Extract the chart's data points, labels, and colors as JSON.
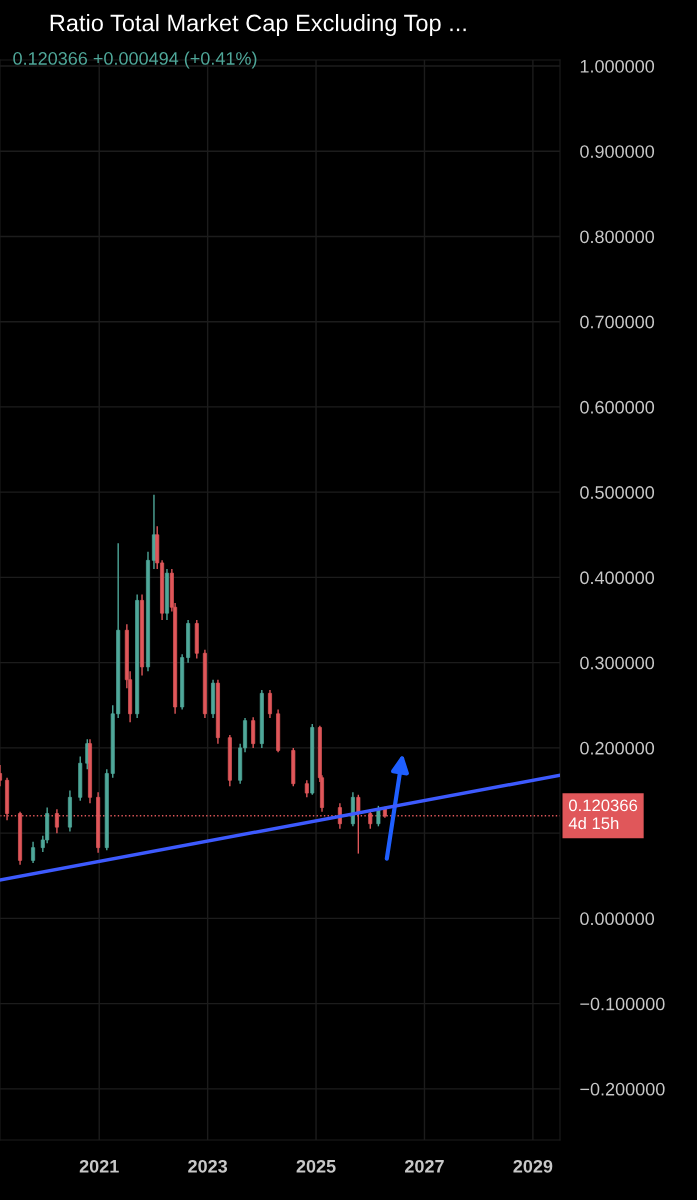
{
  "chart_data": {
    "type": "candlestick",
    "title": "Ratio Total Market Cap Excluding Top ...",
    "subtitle": "0.120366 +0.000494 (+0.41%)",
    "x": [
      2019.17,
      2019.3,
      2019.54,
      2019.78,
      2019.96,
      2020.04,
      2020.22,
      2020.46,
      2020.65,
      2020.78,
      2020.83,
      2020.98,
      2021.14,
      2021.25,
      2021.35,
      2021.51,
      2021.57,
      2021.7,
      2021.79,
      2021.9,
      2022.01,
      2022.07,
      2022.16,
      2022.25,
      2022.34,
      2022.4,
      2022.53,
      2022.64,
      2022.8,
      2022.95,
      2023.1,
      2023.19,
      2023.41,
      2023.6,
      2023.69,
      2023.84,
      2024.0,
      2024.15,
      2024.3,
      2024.58,
      2024.83,
      2024.93,
      2025.07,
      2025.11,
      2025.44,
      2025.68,
      2025.78,
      2026.0,
      2026.15,
      2026.27
    ],
    "ohlc": [
      [
        0.17,
        0.18,
        0.155,
        0.162
      ],
      [
        0.162,
        0.165,
        0.115,
        0.123
      ],
      [
        0.123,
        0.125,
        0.063,
        0.068
      ],
      [
        0.068,
        0.09,
        0.065,
        0.083
      ],
      [
        0.083,
        0.097,
        0.078,
        0.092
      ],
      [
        0.092,
        0.13,
        0.088,
        0.123
      ],
      [
        0.123,
        0.128,
        0.1,
        0.107
      ],
      [
        0.107,
        0.15,
        0.102,
        0.142
      ],
      [
        0.142,
        0.19,
        0.138,
        0.182
      ],
      [
        0.182,
        0.21,
        0.175,
        0.205
      ],
      [
        0.205,
        0.21,
        0.135,
        0.142
      ],
      [
        0.142,
        0.148,
        0.077,
        0.083
      ],
      [
        0.083,
        0.175,
        0.08,
        0.17
      ],
      [
        0.17,
        0.25,
        0.165,
        0.24
      ],
      [
        0.24,
        0.44,
        0.235,
        0.338
      ],
      [
        0.338,
        0.345,
        0.27,
        0.28
      ],
      [
        0.28,
        0.29,
        0.23,
        0.24
      ],
      [
        0.24,
        0.38,
        0.235,
        0.373
      ],
      [
        0.373,
        0.38,
        0.285,
        0.295
      ],
      [
        0.295,
        0.43,
        0.29,
        0.42
      ],
      [
        0.42,
        0.497,
        0.41,
        0.45
      ],
      [
        0.45,
        0.46,
        0.41,
        0.417
      ],
      [
        0.417,
        0.42,
        0.35,
        0.358
      ],
      [
        0.358,
        0.41,
        0.35,
        0.405
      ],
      [
        0.405,
        0.41,
        0.36,
        0.365
      ],
      [
        0.365,
        0.37,
        0.24,
        0.248
      ],
      [
        0.248,
        0.31,
        0.245,
        0.306
      ],
      [
        0.306,
        0.35,
        0.3,
        0.346
      ],
      [
        0.346,
        0.35,
        0.305,
        0.311
      ],
      [
        0.311,
        0.315,
        0.235,
        0.24
      ],
      [
        0.24,
        0.28,
        0.235,
        0.276
      ],
      [
        0.276,
        0.28,
        0.205,
        0.212
      ],
      [
        0.212,
        0.215,
        0.155,
        0.162
      ],
      [
        0.162,
        0.205,
        0.158,
        0.2
      ],
      [
        0.2,
        0.235,
        0.195,
        0.232
      ],
      [
        0.232,
        0.236,
        0.2,
        0.205
      ],
      [
        0.205,
        0.268,
        0.2,
        0.264
      ],
      [
        0.264,
        0.268,
        0.235,
        0.24
      ],
      [
        0.24,
        0.245,
        0.195,
        0.197
      ],
      [
        0.197,
        0.2,
        0.155,
        0.158
      ],
      [
        0.158,
        0.162,
        0.142,
        0.147
      ],
      [
        0.147,
        0.228,
        0.145,
        0.224
      ],
      [
        0.224,
        0.226,
        0.16,
        0.165
      ],
      [
        0.165,
        0.168,
        0.125,
        0.13
      ],
      [
        0.13,
        0.135,
        0.105,
        0.111
      ],
      [
        0.111,
        0.148,
        0.108,
        0.142
      ],
      [
        0.142,
        0.145,
        0.076,
        0.123
      ],
      [
        0.123,
        0.128,
        0.105,
        0.111
      ],
      [
        0.111,
        0.132,
        0.108,
        0.129
      ],
      [
        0.129,
        0.131,
        0.118,
        0.12
      ]
    ],
    "series": [
      {
        "type": "line",
        "color": "#3d5afe",
        "x": [
          2019.17,
          2029.5
        ],
        "values": [
          0.045,
          0.168
        ]
      }
    ],
    "xlim": [
      2019.17,
      2029.5
    ],
    "xticks": [
      2021,
      2023,
      2025,
      2027,
      2029
    ],
    "ylim": [
      -0.26,
      1.007
    ],
    "yticks": [
      {
        "value": -0.2,
        "label": "−0.200000"
      },
      {
        "value": -0.1,
        "label": "−0.100000"
      },
      {
        "value": 0,
        "label": "0.000000"
      },
      {
        "value": 0.1,
        "label": null
      },
      {
        "value": 0.2,
        "label": "0.200000"
      },
      {
        "value": 0.3,
        "label": "0.300000"
      },
      {
        "value": 0.4,
        "label": "0.400000"
      },
      {
        "value": 0.5,
        "label": "0.500000"
      },
      {
        "value": 0.6,
        "label": "0.600000"
      },
      {
        "value": 0.7,
        "label": "0.700000"
      },
      {
        "value": 0.8,
        "label": "0.800000"
      },
      {
        "value": 0.9,
        "label": "0.900000"
      },
      {
        "value": 1.0,
        "label": "1.000000"
      }
    ],
    "ref_lines": [
      {
        "axis": "y",
        "value": 0.120366,
        "label": "0.120366\n4d 15h",
        "color": "#e0575a",
        "line_style": "dotted"
      }
    ],
    "grid": true
  }
}
